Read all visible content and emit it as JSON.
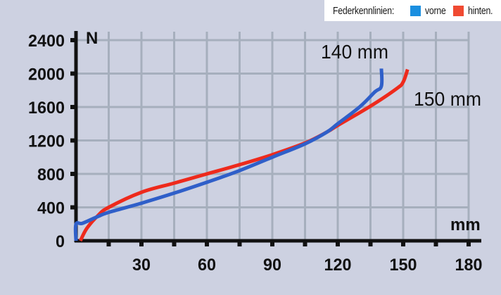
{
  "legend": {
    "title": "Federkennlinien:",
    "items": [
      {
        "label": "vorne",
        "color": "#1a8fe0"
      },
      {
        "label": "hinten.",
        "color": "#f04a32"
      }
    ]
  },
  "axes": {
    "y_unit": "N",
    "x_unit": "mm",
    "y_ticks": [
      "0",
      "400",
      "800",
      "1200",
      "1600",
      "2000",
      "2400"
    ],
    "x_ticks": [
      "30",
      "60",
      "90",
      "120",
      "150",
      "180"
    ]
  },
  "annotations": {
    "front_travel": "140 mm",
    "rear_travel": "150 mm"
  },
  "colors": {
    "background": "#cdd1e1",
    "grid": "#a6afbd",
    "front_line": "#2f5fc9",
    "rear_line": "#ee2a1c",
    "axis": "#111111"
  },
  "chart_data": {
    "type": "line",
    "title": "Federkennlinien",
    "xlabel": "mm",
    "ylabel": "N",
    "xlim": [
      0,
      180
    ],
    "ylim": [
      0,
      2400
    ],
    "x_ticks": [
      30,
      60,
      90,
      120,
      150,
      180
    ],
    "y_ticks": [
      0,
      400,
      800,
      1200,
      1600,
      2000,
      2400
    ],
    "grid": true,
    "legend_position": "top-right",
    "annotations": [
      {
        "text": "140 mm",
        "x": 140,
        "y": 2250
      },
      {
        "text": "150 mm",
        "x": 160,
        "y": 1700
      }
    ],
    "series": [
      {
        "name": "vorne",
        "color": "#2f5fc9",
        "x": [
          0,
          0,
          3,
          10,
          15,
          30,
          45,
          60,
          75,
          90,
          105,
          115,
          120,
          130,
          137,
          140,
          140
        ],
        "values": [
          0,
          200,
          210,
          290,
          340,
          450,
          570,
          700,
          840,
          1000,
          1160,
          1300,
          1400,
          1600,
          1780,
          1850,
          2060
        ]
      },
      {
        "name": "hinten",
        "color": "#ee2a1c",
        "x": [
          2,
          5,
          10,
          15,
          30,
          45,
          60,
          75,
          90,
          105,
          115,
          120,
          135,
          147,
          150,
          152
        ],
        "values": [
          0,
          150,
          300,
          400,
          580,
          690,
          800,
          910,
          1030,
          1170,
          1300,
          1380,
          1610,
          1820,
          1900,
          2050
        ]
      }
    ]
  }
}
